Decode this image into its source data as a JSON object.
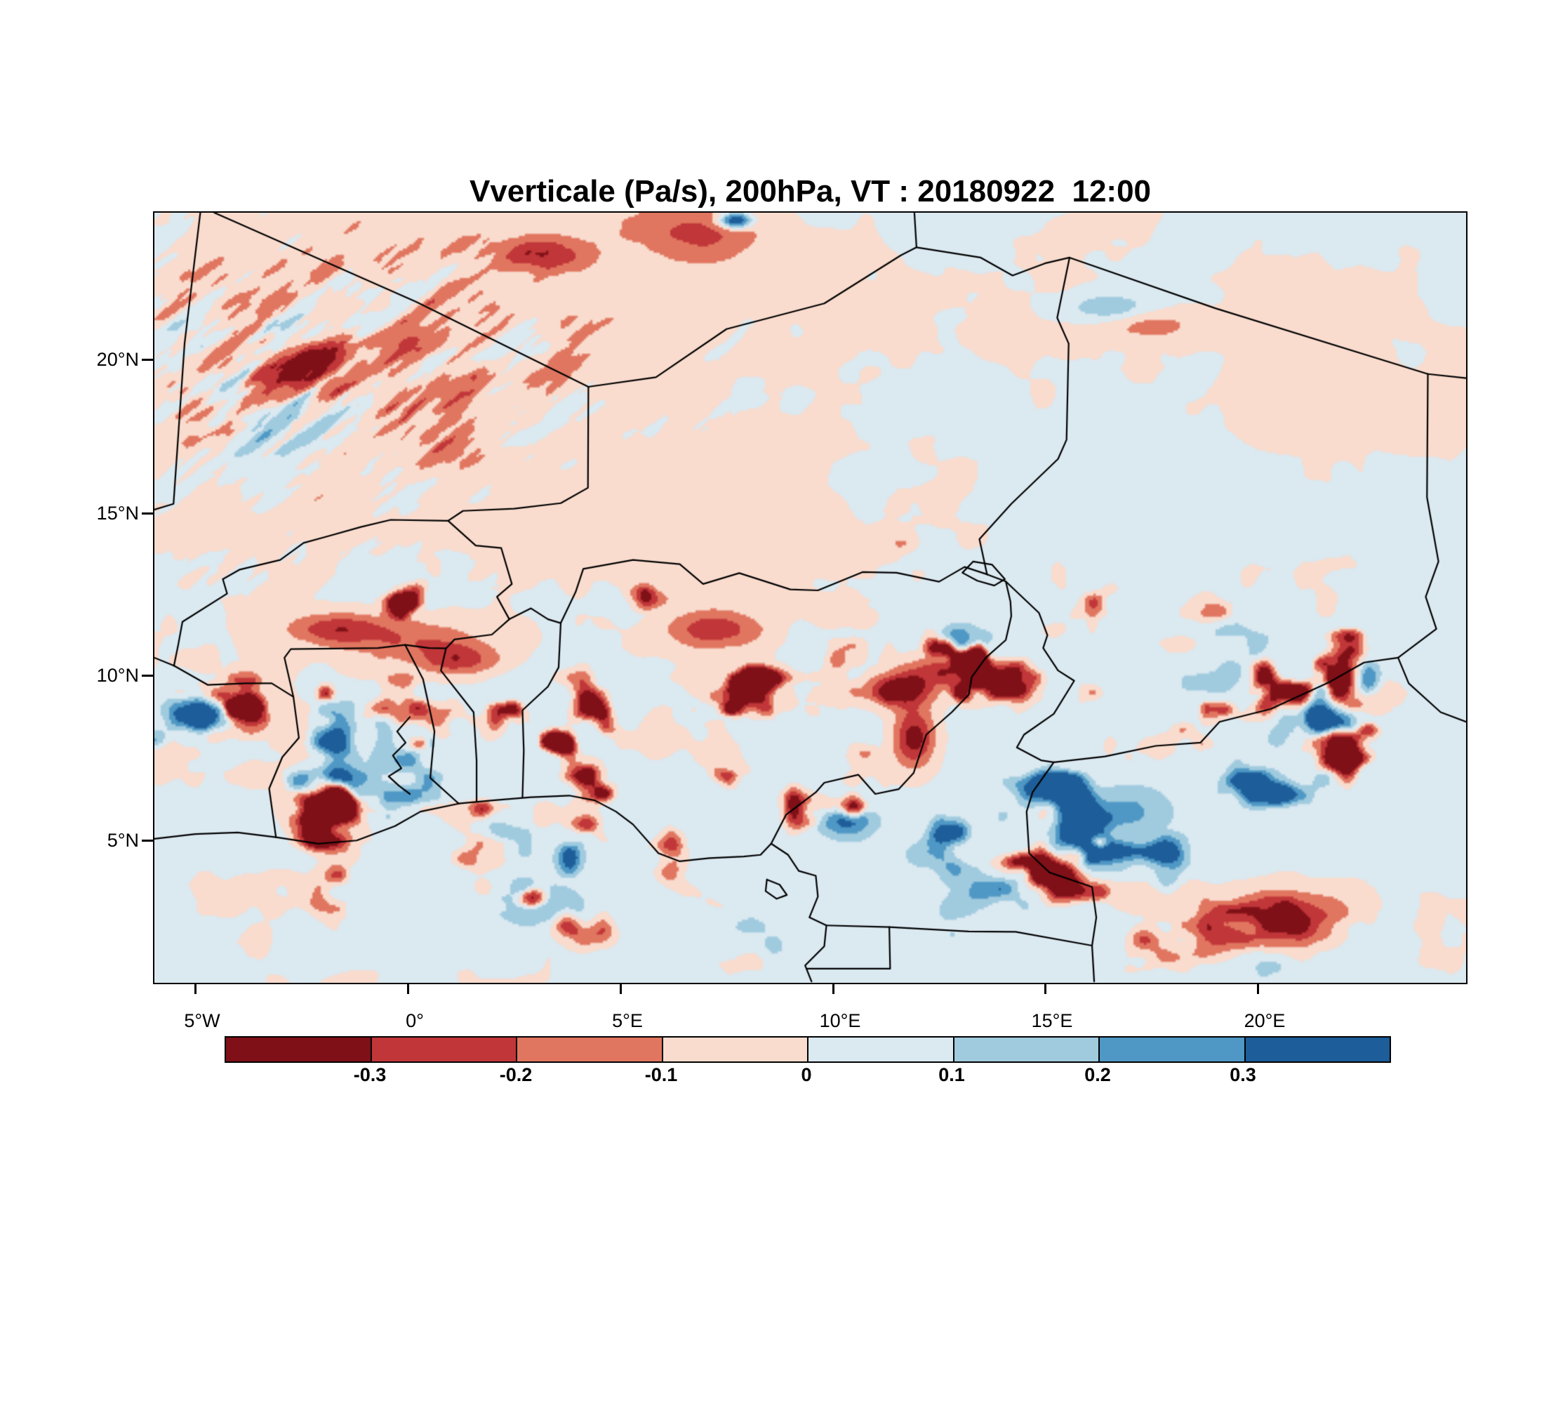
{
  "title": "Vverticale (Pa/s), 200hPa, VT : 20180922  12:00",
  "chart_data": {
    "type": "heatmap",
    "title": "Vverticale (Pa/s), 200hPa, VT : 20180922  12:00",
    "variable": "Vverticale",
    "units": "Pa/s",
    "pressure_level": "200hPa",
    "valid_time": "20180922 12:00",
    "x_ticks": [
      "5°W",
      "0°",
      "5°E",
      "10°E",
      "15°E",
      "20°E"
    ],
    "x_tick_values": [
      -5,
      0,
      5,
      10,
      15,
      20
    ],
    "y_ticks": [
      "20°N",
      "15°N",
      "10°N",
      "5°N"
    ],
    "y_tick_values": [
      20,
      15,
      10,
      5
    ],
    "lon_range": [
      -5.96,
      24.9
    ],
    "lat_range": [
      0.56,
      24.58
    ],
    "legend_position": "bottom",
    "colorbar": {
      "levels": [
        -0.3,
        -0.2,
        -0.1,
        0,
        0.1,
        0.2,
        0.3
      ],
      "labels": [
        "-0.3",
        "-0.2",
        "-0.1",
        "0",
        "0.1",
        "0.2",
        "0.3"
      ],
      "colors": [
        "#7f1017",
        "#c13639",
        "#e17660",
        "#f9dcce",
        "#dbe9f1",
        "#a0cbdf",
        "#4f98c5",
        "#1d5d99"
      ]
    },
    "map_borders": [
      [
        [
          -5.96,
          5.05
        ],
        [
          -5.0,
          5.2
        ],
        [
          -4.0,
          5.25
        ],
        [
          -3.1,
          5.1
        ],
        [
          -2.1,
          4.9
        ],
        [
          -1.2,
          5.0
        ],
        [
          -0.3,
          5.45
        ],
        [
          0.3,
          5.9
        ],
        [
          1.2,
          6.15
        ],
        [
          2.0,
          6.25
        ],
        [
          2.9,
          6.35
        ],
        [
          3.8,
          6.4
        ],
        [
          4.4,
          6.25
        ],
        [
          4.9,
          5.9
        ],
        [
          5.3,
          5.5
        ],
        [
          5.9,
          4.6
        ],
        [
          6.4,
          4.35
        ],
        [
          7.1,
          4.45
        ],
        [
          7.9,
          4.5
        ],
        [
          8.3,
          4.55
        ],
        [
          8.55,
          4.9
        ],
        [
          8.95,
          4.55
        ],
        [
          9.2,
          4.05
        ],
        [
          9.6,
          3.9
        ],
        [
          9.65,
          3.25
        ],
        [
          9.45,
          2.6
        ],
        [
          9.85,
          2.35
        ],
        [
          9.8,
          1.7
        ],
        [
          9.35,
          1.1
        ],
        [
          9.5,
          0.6
        ]
      ],
      [
        [
          -4.55,
          24.58
        ],
        [
          0.2,
          21.8
        ],
        [
          4.25,
          19.15
        ]
      ],
      [
        [
          -4.88,
          24.58
        ],
        [
          -5.25,
          20.5
        ],
        [
          -5.51,
          15.5
        ],
        [
          -5.96,
          15.32
        ]
      ],
      [
        [
          4.25,
          19.15
        ],
        [
          5.84,
          19.45
        ],
        [
          7.5,
          20.95
        ],
        [
          9.8,
          21.75
        ],
        [
          11.6,
          23.25
        ],
        [
          11.97,
          23.5
        ],
        [
          11.92,
          24.58
        ]
      ],
      [
        [
          11.97,
          23.5
        ],
        [
          13.48,
          23.18
        ],
        [
          14.23,
          22.62
        ],
        [
          14.99,
          23.0
        ],
        [
          15.57,
          23.18
        ],
        [
          19.0,
          21.6
        ],
        [
          24.0,
          19.55
        ],
        [
          24.9,
          19.42
        ]
      ],
      [
        [
          4.25,
          19.15
        ],
        [
          4.24,
          16.0
        ],
        [
          3.6,
          15.52
        ],
        [
          2.5,
          15.35
        ],
        [
          1.3,
          15.28
        ],
        [
          0.95,
          14.97
        ]
      ],
      [
        [
          0.95,
          14.97
        ],
        [
          -0.4,
          15.0
        ],
        [
          -1.1,
          14.78
        ],
        [
          -1.9,
          14.48
        ],
        [
          -2.45,
          14.28
        ],
        [
          -3.0,
          13.75
        ],
        [
          -3.95,
          13.45
        ],
        [
          -4.35,
          13.15
        ],
        [
          -4.25,
          12.7
        ],
        [
          -5.3,
          11.82
        ],
        [
          -5.4,
          11.1
        ],
        [
          -5.5,
          10.45
        ]
      ],
      [
        [
          -5.5,
          10.45
        ],
        [
          -5.96,
          10.7
        ]
      ],
      [
        [
          -5.5,
          10.45
        ],
        [
          -4.7,
          9.85
        ],
        [
          -3.8,
          9.9
        ],
        [
          -3.2,
          9.9
        ],
        [
          -2.69,
          9.48
        ]
      ],
      [
        [
          -2.69,
          9.48
        ],
        [
          -2.56,
          8.2
        ],
        [
          -2.95,
          7.6
        ],
        [
          -3.26,
          6.62
        ],
        [
          -3.1,
          5.1
        ]
      ],
      [
        [
          -2.69,
          9.48
        ],
        [
          -2.9,
          10.7
        ],
        [
          -2.75,
          10.97
        ],
        [
          -0.7,
          11.0
        ],
        [
          -0.06,
          11.1
        ],
        [
          0.5,
          11.0
        ],
        [
          0.9,
          10.99
        ],
        [
          1.1,
          11.27
        ],
        [
          1.98,
          11.42
        ],
        [
          2.39,
          11.9
        ]
      ],
      [
        [
          -0.06,
          11.1
        ],
        [
          0.36,
          10.03
        ],
        [
          0.63,
          8.4
        ],
        [
          0.53,
          6.95
        ],
        [
          1.2,
          6.15
        ]
      ],
      [
        [
          0.9,
          10.99
        ],
        [
          0.78,
          10.3
        ],
        [
          1.55,
          9.0
        ],
        [
          1.62,
          7.5
        ],
        [
          1.62,
          6.22
        ]
      ],
      [
        [
          0.95,
          14.97
        ],
        [
          1.6,
          14.2
        ],
        [
          2.2,
          14.12
        ],
        [
          2.45,
          13.0
        ],
        [
          2.1,
          12.6
        ],
        [
          2.39,
          11.9
        ]
      ],
      [
        [
          2.39,
          11.9
        ],
        [
          2.9,
          12.24
        ],
        [
          3.3,
          11.9
        ],
        [
          3.6,
          11.78
        ]
      ],
      [
        [
          3.6,
          11.78
        ],
        [
          3.55,
          10.4
        ],
        [
          3.3,
          9.8
        ],
        [
          2.7,
          9.06
        ],
        [
          2.73,
          7.8
        ],
        [
          2.7,
          6.35
        ]
      ],
      [
        [
          3.6,
          11.78
        ],
        [
          3.95,
          12.75
        ],
        [
          4.13,
          13.47
        ],
        [
          5.3,
          13.75
        ],
        [
          6.4,
          13.62
        ],
        [
          6.95,
          13.0
        ],
        [
          7.8,
          13.34
        ],
        [
          9.0,
          12.83
        ],
        [
          9.65,
          12.8
        ],
        [
          10.7,
          13.37
        ],
        [
          11.5,
          13.35
        ],
        [
          12.5,
          13.07
        ],
        [
          13.1,
          13.53
        ],
        [
          13.63,
          13.3
        ]
      ],
      [
        [
          8.55,
          4.9
        ],
        [
          8.9,
          5.8
        ],
        [
          9.6,
          6.5
        ],
        [
          9.8,
          6.8
        ],
        [
          10.6,
          7.05
        ],
        [
          11.0,
          6.45
        ],
        [
          11.55,
          6.6
        ],
        [
          11.9,
          7.1
        ],
        [
          12.2,
          8.3
        ],
        [
          12.8,
          9.0
        ],
        [
          13.2,
          9.55
        ],
        [
          13.27,
          10.1
        ],
        [
          13.6,
          10.7
        ],
        [
          14.07,
          11.25
        ],
        [
          14.2,
          12.0
        ],
        [
          14.18,
          12.45
        ],
        [
          14.07,
          13.08
        ],
        [
          13.63,
          13.3
        ]
      ],
      [
        [
          13.63,
          13.3
        ],
        [
          13.45,
          14.4
        ],
        [
          14.2,
          15.5
        ],
        [
          15.3,
          16.9
        ],
        [
          15.5,
          17.5
        ],
        [
          15.55,
          20.5
        ],
        [
          15.28,
          21.3
        ],
        [
          15.57,
          23.18
        ]
      ],
      [
        [
          14.07,
          13.08
        ],
        [
          14.85,
          12.1
        ],
        [
          15.05,
          11.4
        ],
        [
          14.95,
          11.0
        ],
        [
          15.3,
          10.3
        ],
        [
          15.68,
          9.98
        ],
        [
          15.2,
          8.95
        ],
        [
          14.5,
          8.3
        ],
        [
          14.33,
          7.9
        ],
        [
          14.9,
          7.5
        ],
        [
          15.2,
          7.44
        ]
      ],
      [
        [
          15.2,
          7.44
        ],
        [
          14.7,
          6.5
        ],
        [
          14.56,
          5.9
        ],
        [
          14.62,
          4.6
        ],
        [
          15.1,
          4.0
        ],
        [
          16.1,
          3.55
        ],
        [
          16.2,
          2.6
        ],
        [
          16.1,
          1.72
        ],
        [
          16.15,
          0.6
        ]
      ],
      [
        [
          15.2,
          7.44
        ],
        [
          16.4,
          7.62
        ],
        [
          17.6,
          7.95
        ],
        [
          18.65,
          8.05
        ],
        [
          19.1,
          8.7
        ],
        [
          20.3,
          9.1
        ],
        [
          21.7,
          9.95
        ],
        [
          22.5,
          10.55
        ],
        [
          23.3,
          10.7
        ]
      ],
      [
        [
          23.3,
          10.7
        ],
        [
          24.2,
          11.6
        ],
        [
          23.95,
          12.6
        ],
        [
          24.25,
          13.7
        ],
        [
          23.98,
          15.7
        ],
        [
          24.0,
          19.55
        ]
      ],
      [
        [
          23.3,
          10.7
        ],
        [
          23.55,
          9.9
        ],
        [
          24.3,
          9.0
        ],
        [
          24.9,
          8.7
        ]
      ],
      [
        [
          9.85,
          2.35
        ],
        [
          11.33,
          2.3
        ],
        [
          11.35,
          1.0
        ],
        [
          9.4,
          1.0
        ]
      ],
      [
        [
          11.33,
          2.3
        ],
        [
          13.2,
          2.16
        ],
        [
          14.3,
          2.15
        ],
        [
          16.1,
          1.72
        ]
      ],
      [
        [
          8.45,
          3.78
        ],
        [
          8.75,
          3.62
        ],
        [
          8.92,
          3.3
        ],
        [
          8.68,
          3.18
        ],
        [
          8.42,
          3.42
        ],
        [
          8.45,
          3.78
        ]
      ],
      [
        [
          0.05,
          8.85
        ],
        [
          -0.25,
          8.4
        ],
        [
          -0.05,
          8.05
        ],
        [
          -0.35,
          7.65
        ],
        [
          -0.15,
          7.25
        ],
        [
          -0.45,
          7.0
        ],
        [
          -0.2,
          6.7
        ],
        [
          0.05,
          6.45
        ]
      ],
      [
        [
          13.05,
          13.35
        ],
        [
          13.3,
          13.7
        ],
        [
          13.75,
          13.6
        ],
        [
          14.05,
          13.15
        ],
        [
          13.8,
          12.95
        ],
        [
          13.4,
          13.1
        ],
        [
          13.05,
          13.35
        ]
      ]
    ]
  }
}
